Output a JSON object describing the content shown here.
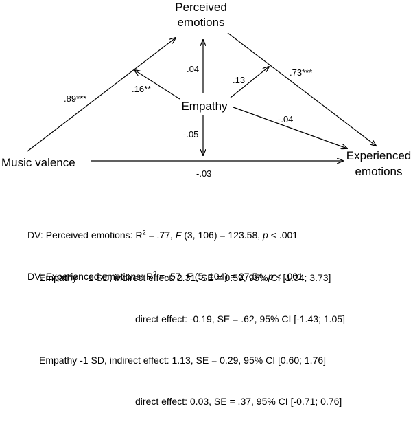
{
  "nodes": {
    "perceived_line1": "Perceived",
    "perceived_line2": "emotions",
    "empathy": "Empathy",
    "music_valence": "Music valence",
    "experienced_line1": "Experienced",
    "experienced_line2": "emotions"
  },
  "coefficients": {
    "music_to_perceived": ".89***",
    "empathy_to_music_perceived": ".16**",
    "empathy_to_perceived": ".04",
    "empathy_to_perceived_experienced": ".13",
    "perceived_to_experienced": ".73***",
    "empathy_to_experienced": "-.04",
    "empathy_to_music_experienced": "-.05",
    "music_to_experienced": "-.03"
  },
  "dv_stats": {
    "perceived": {
      "prefix": "DV: Perceived emotions: R",
      "sup": "2",
      "mid1": " = .77, ",
      "f": "F",
      "mid2": " (3, 106) = 123.58, ",
      "p": "p",
      "tail": " < .001"
    },
    "experienced": {
      "prefix": "DV: Experienced emotions: R",
      "sup": "2",
      "mid1": " = .57, ",
      "f": "F",
      "mid2": " (5, 104) = 27.54, ",
      "p": "p",
      "tail": " < .001"
    }
  },
  "effects": {
    "plus_indirect": "Empathy + 1 SD, indirect effect: 2.31, SE = 0.59, 95% CI [1.34; 3.73]",
    "plus_direct": "direct effect: -0.19, SE = .62, 95% CI [-1.43; 1.05]",
    "minus_indirect": "Empathy -1 SD, indirect effect: 1.13, SE = 0.29, 95% CI [0.60; 1.76]",
    "minus_direct": "direct effect: 0.03, SE = .37, 95% CI [-0.71; 0.76]"
  }
}
